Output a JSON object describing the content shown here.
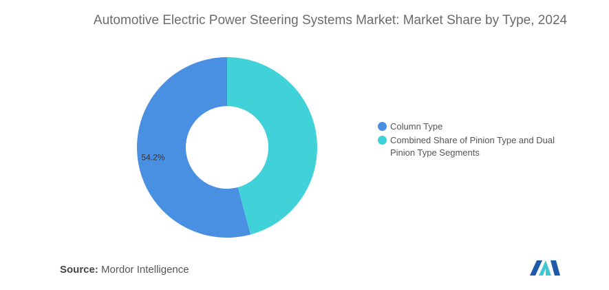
{
  "chart_data": {
    "type": "pie",
    "title": "Automotive Electric Power Steering Systems Market: Market Share by Type, 2024",
    "slices": [
      {
        "label": "Column Type",
        "value": 54.2,
        "data_label": "54.2%",
        "color": "#4a90e2"
      },
      {
        "label": "Combined Share of Pinion Type and Dual Pinion Type Segments",
        "value": 45.8,
        "data_label": "",
        "color": "#41d1d9"
      }
    ],
    "legend_position": "right"
  },
  "source": {
    "prefix": "Source:",
    "text": "Mordor Intelligence"
  },
  "logo": {
    "name": "mordor-intelligence-logo",
    "colors": [
      "#1e5aa8",
      "#41c9d1"
    ]
  }
}
